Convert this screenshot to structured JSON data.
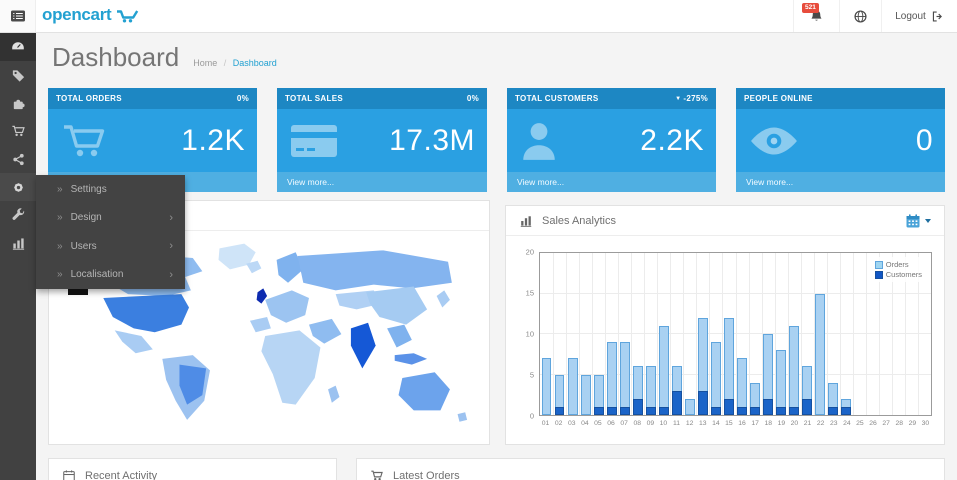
{
  "colors": {
    "accent": "#23a1d1",
    "tile_header": "#1d87c3",
    "tile_body": "#2aa0e2",
    "tile_footer": "#4fafe2",
    "badge_red": "#e74c3c",
    "sidebar_bg": "#414141"
  },
  "header": {
    "logo_text": "opencart",
    "notifications_badge": "521",
    "logout_label": "Logout"
  },
  "page": {
    "title": "Dashboard",
    "breadcrumb_home": "Home",
    "breadcrumb_sep": "/",
    "breadcrumb_current": "Dashboard"
  },
  "flyout_menu": {
    "arrow_glyph": "»",
    "chevron_glyph": "›",
    "items": [
      {
        "label": "Settings",
        "has_children": false
      },
      {
        "label": "Design",
        "has_children": true
      },
      {
        "label": "Users",
        "has_children": true
      },
      {
        "label": "Localisation",
        "has_children": true
      }
    ]
  },
  "tiles": [
    {
      "title": "TOTAL ORDERS",
      "change": "0%",
      "value": "1.2K",
      "footer": "View more...",
      "icon": "shopping-cart"
    },
    {
      "title": "TOTAL SALES",
      "change": "0%",
      "value": "17.3M",
      "footer": "View more...",
      "icon": "credit-card"
    },
    {
      "title": "TOTAL CUSTOMERS",
      "change": "-275%",
      "change_icon": "▼",
      "value": "2.2K",
      "footer": "View more...",
      "icon": "user"
    },
    {
      "title": "PEOPLE ONLINE",
      "change": "",
      "value": "0",
      "footer": "View more...",
      "icon": "eye"
    }
  ],
  "panels": {
    "sales_analytics": {
      "title": "Sales Analytics"
    },
    "recent_activity": {
      "title": "Recent Activity"
    },
    "latest_orders": {
      "title": "Latest Orders"
    }
  },
  "chart_data": {
    "type": "bar",
    "title": "Sales Analytics",
    "categories": [
      "01",
      "02",
      "03",
      "04",
      "05",
      "06",
      "07",
      "08",
      "09",
      "10",
      "11",
      "12",
      "13",
      "14",
      "15",
      "16",
      "17",
      "18",
      "19",
      "20",
      "21",
      "22",
      "23",
      "24",
      "25",
      "26",
      "27",
      "28",
      "29",
      "30"
    ],
    "series": [
      {
        "name": "Orders",
        "fill": "#a9d1f2",
        "stroke": "#5fa5dd",
        "legend": "#9fd5f1",
        "values": [
          7,
          5,
          7,
          5,
          5,
          9,
          9,
          6,
          6,
          11,
          6,
          2,
          12,
          9,
          12,
          7,
          4,
          10,
          8,
          11,
          6,
          15,
          4,
          2,
          0,
          0,
          0,
          0,
          0,
          0
        ]
      },
      {
        "name": "Customers",
        "fill": "#1b64c8",
        "stroke": "#15509f",
        "legend": "#1256c4",
        "values": [
          0,
          1,
          0,
          0,
          1,
          1,
          1,
          2,
          1,
          1,
          3,
          0,
          3,
          1,
          2,
          1,
          1,
          2,
          1,
          1,
          2,
          0,
          1,
          1,
          0,
          0,
          0,
          0,
          0,
          0
        ]
      }
    ],
    "xlabel": "",
    "ylabel": "",
    "ylim": [
      0,
      20
    ],
    "yticks": [
      0,
      5,
      10,
      15,
      20
    ],
    "grid": true,
    "legend_position": "top-right"
  }
}
